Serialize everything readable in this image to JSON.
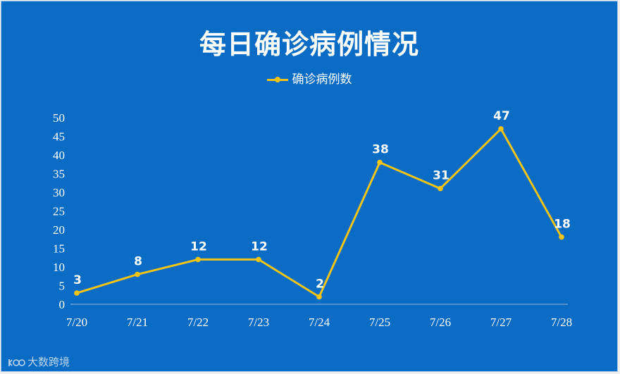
{
  "title": "每日确诊病例情况",
  "legend": {
    "label": "确诊病例数"
  },
  "watermark": {
    "text": "大数跨境"
  },
  "colors": {
    "background": "#0a6cc4",
    "line": "#f2c418",
    "text": "#ffffff"
  },
  "chart_data": {
    "type": "line",
    "title": "每日确诊病例情况",
    "categories": [
      "7/20",
      "7/21",
      "7/22",
      "7/23",
      "7/24",
      "7/25",
      "7/26",
      "7/27",
      "7/28"
    ],
    "series": [
      {
        "name": "确诊病例数",
        "values": [
          3,
          8,
          12,
          12,
          2,
          38,
          31,
          47,
          18
        ]
      }
    ],
    "ylim": [
      0,
      50
    ],
    "yticks": [
      0,
      5,
      10,
      15,
      20,
      25,
      30,
      35,
      40,
      45,
      50
    ],
    "xlabel": "",
    "ylabel": "",
    "grid": false,
    "legend_position": "top",
    "data_labels": true
  }
}
